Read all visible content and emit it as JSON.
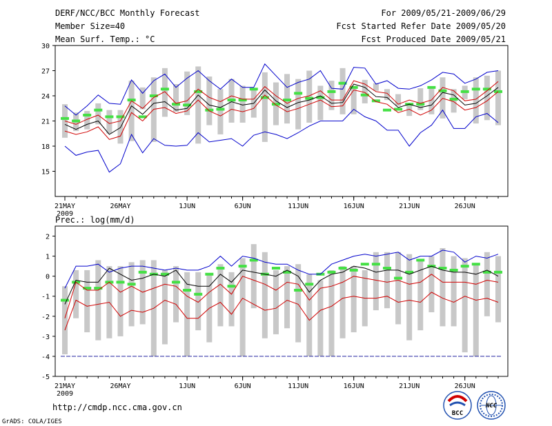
{
  "header": {
    "title": "DERF/NCC/BCC Monthly Forecast",
    "member_size": "Member Size=40",
    "variable": "Mean Surf. Temp.: °C",
    "period": "For 2009/05/21-2009/06/29",
    "fcst_started": "Fcst Started Refer Date 2009/05/20",
    "fcst_produced": "Fcst Produced Date 2009/05/21"
  },
  "footer": {
    "url": "http://cmdp.ncc.cma.gov.cn",
    "grads": "GrADS: COLA/IGES",
    "logo_bcc": "BCC",
    "logo_ncc": "NCC"
  },
  "colors": {
    "box": "#c8c8c8",
    "green": "#44e044",
    "black": "#000000",
    "red": "#d00000",
    "blue": "#0000cc",
    "baseline": "#2020a0"
  },
  "chart_data": [
    {
      "type": "line",
      "name": "temperature",
      "title": "Mean Surf. Temp.: °C",
      "x_tick_labels": [
        "21MAY",
        "26MAY",
        "1JUN",
        "6JUN",
        "11JUN",
        "16JUN",
        "21JUN",
        "26JUN"
      ],
      "x_tick_days": [
        0,
        5,
        11,
        16,
        21,
        26,
        31,
        36
      ],
      "x_year_label": "2009",
      "ylim": [
        12,
        30
      ],
      "y_ticks": [
        15,
        18,
        21,
        24,
        27,
        30
      ],
      "days": 40,
      "box_low": [
        19.0,
        19.8,
        20.0,
        20.6,
        19.5,
        18.3,
        18.6,
        22.4,
        18.5,
        21.5,
        22.1,
        21.7,
        18.3,
        20.5,
        19.4,
        20.8,
        20.8,
        21.4,
        18.5,
        20.5,
        20.7,
        20.0,
        20.8,
        21.1,
        22.3,
        21.8,
        21.8,
        23.1,
        24.6,
        23.5,
        22.8,
        21.6,
        22.3,
        21.8,
        21.3,
        22.0,
        23.6,
        20.7,
        21.1,
        20.5
      ],
      "box_high": [
        23.0,
        22.0,
        22.2,
        23.1,
        22.3,
        22.3,
        25.8,
        25.0,
        26.2,
        27.3,
        25.4,
        26.9,
        27.5,
        26.3,
        24.8,
        26.0,
        25.2,
        24.8,
        26.8,
        25.6,
        26.6,
        26.0,
        27.0,
        25.2,
        25.8,
        27.3,
        25.2,
        25.9,
        25.5,
        24.8,
        24.2,
        22.9,
        24.9,
        24.9,
        26.2,
        24.8,
        25.2,
        26.2,
        26.4,
        27.0
      ],
      "green": [
        21.3,
        21.0,
        21.7,
        22.3,
        21.5,
        21.5,
        23.5,
        21.5,
        24.0,
        24.8,
        23.0,
        22.9,
        24.5,
        22.3,
        22.4,
        23.5,
        23.5,
        24.8,
        23.8,
        23.0,
        23.5,
        24.3,
        23.7,
        23.8,
        24.5,
        25.5,
        25.0,
        24.1,
        23.4,
        22.3,
        22.4,
        23.0,
        23.0,
        25.0,
        24.6,
        23.6,
        24.5,
        24.8,
        24.8,
        24.5
      ],
      "series": [
        {
          "name": "upper envelope",
          "color": "blue",
          "values": [
            22.8,
            21.7,
            22.8,
            24.1,
            23.1,
            23.0,
            25.9,
            24.3,
            25.8,
            26.6,
            25.0,
            26.1,
            27.0,
            25.8,
            24.8,
            26.0,
            25.0,
            25.0,
            27.8,
            26.4,
            25.0,
            25.6,
            26.0,
            27.0,
            24.9,
            24.8,
            27.4,
            27.3,
            25.4,
            25.8,
            24.9,
            24.8,
            25.2,
            25.9,
            26.8,
            26.6,
            25.5,
            26.0,
            26.8,
            27.0
          ]
        },
        {
          "name": "upper band",
          "color": "red",
          "values": [
            21.0,
            20.6,
            21.2,
            21.7,
            20.7,
            21.0,
            23.4,
            22.5,
            23.8,
            24.5,
            23.1,
            23.4,
            24.8,
            23.8,
            23.3,
            24.0,
            23.6,
            23.6,
            25.1,
            24.0,
            23.1,
            23.7,
            24.0,
            24.6,
            23.5,
            23.5,
            25.8,
            25.4,
            24.5,
            24.3,
            23.0,
            23.5,
            23.1,
            23.5,
            25.0,
            24.6,
            23.4,
            23.6,
            24.6,
            25.7
          ]
        },
        {
          "name": "ensemble mean",
          "color": "black",
          "values": [
            20.6,
            20.0,
            20.6,
            21.0,
            19.4,
            20.2,
            22.8,
            21.8,
            23.1,
            23.3,
            22.3,
            22.5,
            24.1,
            22.9,
            22.6,
            23.3,
            22.9,
            23.1,
            24.7,
            23.4,
            22.6,
            23.2,
            23.5,
            24.0,
            23.1,
            23.2,
            25.4,
            25.0,
            23.9,
            23.8,
            22.6,
            23.0,
            22.6,
            22.9,
            24.4,
            24.1,
            22.9,
            23.1,
            24.0,
            25.0
          ]
        },
        {
          "name": "lower band",
          "color": "red",
          "values": [
            19.8,
            19.4,
            19.7,
            20.3,
            18.8,
            19.2,
            22.0,
            21.0,
            22.4,
            22.6,
            21.9,
            22.2,
            23.5,
            22.2,
            21.6,
            22.4,
            22.1,
            22.5,
            24.1,
            22.9,
            22.1,
            22.5,
            23.0,
            23.5,
            22.7,
            22.8,
            24.7,
            24.4,
            23.3,
            23.0,
            22.0,
            22.4,
            21.7,
            22.3,
            23.7,
            23.3,
            22.3,
            22.6,
            23.4,
            24.5
          ]
        },
        {
          "name": "lower envelope",
          "color": "blue",
          "values": [
            18.0,
            16.9,
            17.3,
            17.5,
            14.9,
            15.9,
            19.4,
            17.2,
            18.9,
            18.1,
            18.0,
            18.1,
            19.6,
            18.5,
            18.7,
            18.9,
            18.0,
            19.3,
            19.7,
            19.4,
            18.9,
            19.6,
            20.4,
            21.0,
            21.0,
            21.0,
            22.4,
            21.5,
            21.0,
            19.9,
            19.9,
            18.0,
            19.6,
            20.5,
            22.3,
            20.1,
            20.1,
            21.5,
            21.9,
            20.8
          ]
        }
      ]
    },
    {
      "type": "line",
      "name": "precipitation",
      "title": "Prec.: log(mm/d)",
      "x_tick_labels": [
        "21MAY",
        "26MAY",
        "1JUN",
        "6JUN",
        "11JUN",
        "16JUN",
        "21JUN",
        "26JUN"
      ],
      "x_tick_days": [
        0,
        5,
        11,
        16,
        21,
        26,
        31,
        36
      ],
      "x_year_label": "2009",
      "ylim": [
        -5,
        2.5
      ],
      "y_ticks": [
        -5,
        -4,
        -3,
        -2,
        -1,
        0,
        1,
        2
      ],
      "days": 40,
      "baseline": -4,
      "box_low": [
        -3.9,
        -2.1,
        -2.8,
        -3.2,
        -3.1,
        -3.0,
        -2.5,
        -2.4,
        -4.0,
        -3.4,
        -2.3,
        -4.0,
        -2.7,
        -3.3,
        -2.5,
        -2.5,
        -4.0,
        -1.6,
        -3.1,
        -2.9,
        -2.6,
        -3.3,
        -4.0,
        -4.0,
        -4.0,
        -3.1,
        -2.8,
        -2.5,
        -1.7,
        -1.6,
        -2.4,
        -3.2,
        -2.7,
        -1.8,
        -2.5,
        -2.5,
        -3.8,
        -4.0,
        -2.0,
        -2.3
      ],
      "box_high": [
        -0.5,
        0.3,
        0.3,
        0.8,
        0.5,
        0.5,
        0.7,
        0.8,
        0.8,
        0.3,
        0.5,
        0.2,
        0.2,
        0.1,
        0.6,
        0.2,
        0.9,
        1.6,
        1.2,
        0.3,
        0.5,
        0.6,
        0.1,
        -0.2,
        0.3,
        0.5,
        0.5,
        0.3,
        1.2,
        1.2,
        1.2,
        1.1,
        0.8,
        1.0,
        1.4,
        1.0,
        0.9,
        0.6,
        1.2,
        1.0
      ],
      "green": [
        -1.2,
        -0.3,
        -0.6,
        -0.6,
        -0.3,
        -0.3,
        -0.4,
        0.2,
        0.1,
        0.1,
        -0.3,
        -0.7,
        -0.9,
        0.1,
        0.4,
        -0.5,
        0.5,
        0.8,
        0.1,
        0.4,
        0.2,
        -0.7,
        -0.4,
        0.1,
        0.2,
        0.4,
        0.3,
        0.6,
        0.6,
        0.4,
        -0.1,
        0.2,
        0.8,
        0.5,
        0.4,
        0.3,
        0.5,
        0.6,
        0.2,
        0.2
      ],
      "series": [
        {
          "name": "upper envelope",
          "color": "blue",
          "values": [
            -0.6,
            0.5,
            0.5,
            0.6,
            0.2,
            0.4,
            0.5,
            0.5,
            0.4,
            0.3,
            0.4,
            0.3,
            0.3,
            0.5,
            1.0,
            0.5,
            1.0,
            0.9,
            0.7,
            0.6,
            0.6,
            0.3,
            0.1,
            0.1,
            0.6,
            0.8,
            1.0,
            1.1,
            1.0,
            1.1,
            1.2,
            0.8,
            1.0,
            1.0,
            1.3,
            1.2,
            0.7,
            1.0,
            0.9,
            1.1
          ]
        },
        {
          "name": "ensemble mean",
          "color": "black",
          "values": [
            -1.4,
            -0.2,
            -0.3,
            -0.3,
            0.4,
            0.1,
            -0.2,
            -0.1,
            0.1,
            0.0,
            0.3,
            -0.4,
            -0.5,
            -0.5,
            0.1,
            -0.3,
            0.3,
            0.2,
            0.1,
            0.0,
            0.3,
            0.0,
            -0.8,
            -0.2,
            0.1,
            0.2,
            0.5,
            0.4,
            0.2,
            0.3,
            0.3,
            0.1,
            0.3,
            0.5,
            0.3,
            0.2,
            0.2,
            0.1,
            0.3,
            0.0
          ]
        },
        {
          "name": "upper band",
          "color": "red",
          "values": [
            -2.1,
            -0.3,
            -0.7,
            -0.7,
            -0.3,
            -0.8,
            -0.5,
            -0.8,
            -0.6,
            -0.4,
            -0.5,
            -1.0,
            -1.3,
            -0.8,
            -0.4,
            -0.9,
            0.0,
            -0.2,
            -0.4,
            -0.7,
            -0.3,
            -0.4,
            -1.2,
            -0.6,
            -0.5,
            -0.3,
            0.0,
            -0.1,
            -0.2,
            -0.3,
            -0.2,
            -0.4,
            -0.3,
            0.1,
            -0.3,
            -0.3,
            -0.3,
            -0.4,
            -0.2,
            -0.3
          ]
        },
        {
          "name": "lower band",
          "color": "red",
          "values": [
            -2.7,
            -1.2,
            -1.5,
            -1.4,
            -1.3,
            -2.0,
            -1.7,
            -1.8,
            -1.6,
            -1.2,
            -1.4,
            -2.1,
            -2.1,
            -1.6,
            -1.3,
            -1.9,
            -1.1,
            -1.4,
            -1.7,
            -1.6,
            -1.2,
            -1.4,
            -2.2,
            -1.7,
            -1.5,
            -1.1,
            -1.0,
            -1.1,
            -1.1,
            -1.0,
            -1.3,
            -1.2,
            -1.3,
            -0.8,
            -1.1,
            -1.3,
            -1.0,
            -1.2,
            -1.1,
            -1.3
          ]
        }
      ]
    }
  ]
}
